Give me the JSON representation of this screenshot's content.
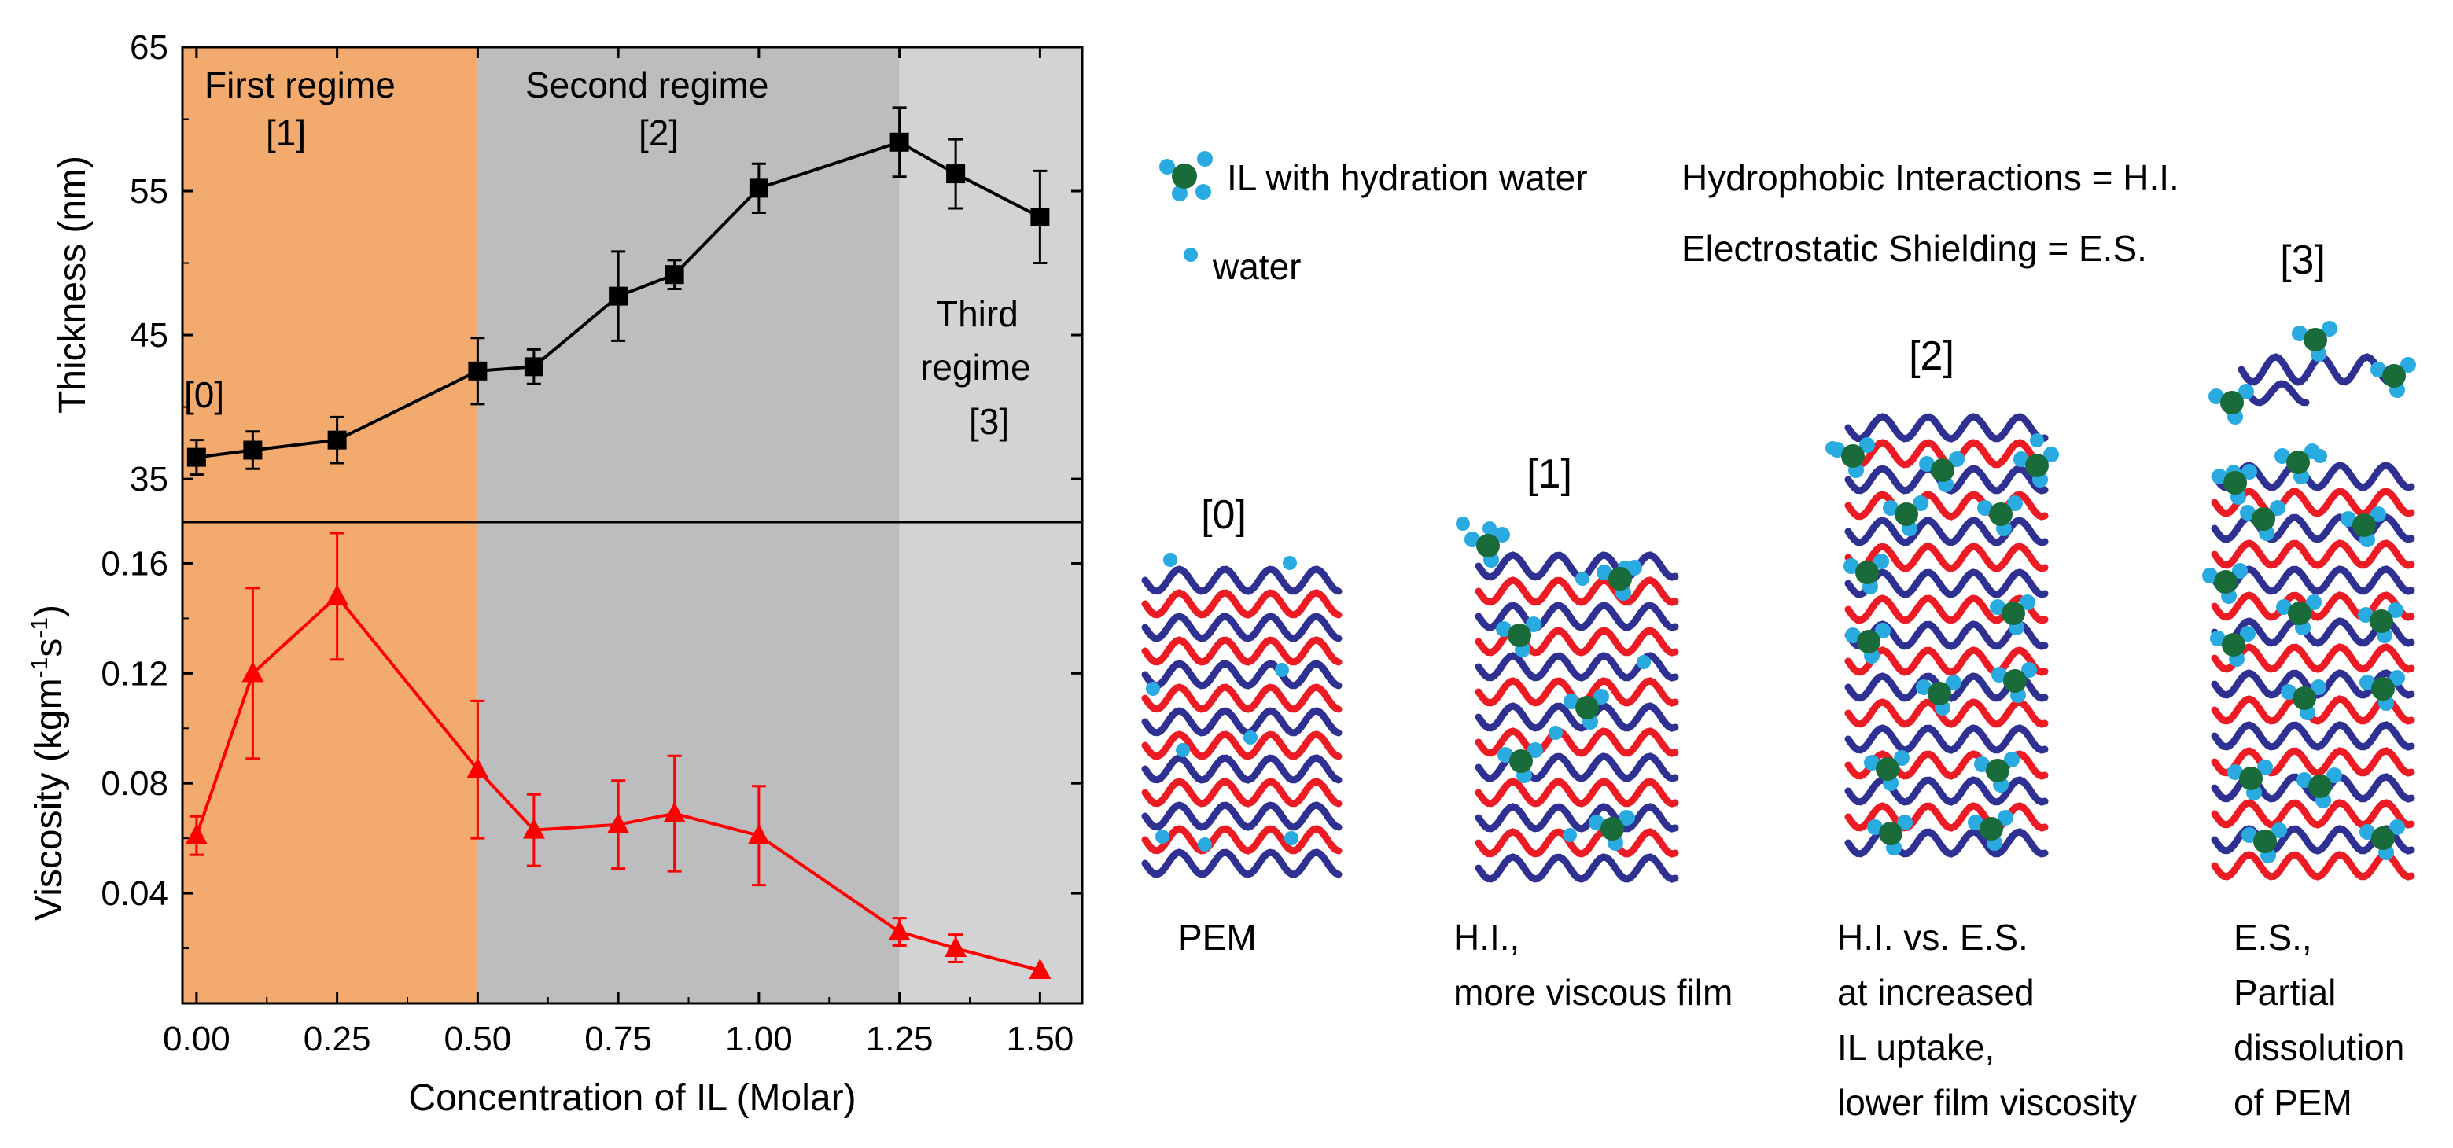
{
  "chart_data": [
    {
      "type": "line",
      "panel": "top",
      "ylabel": "Thickness (nm)",
      "ylim": [
        32,
        65
      ],
      "yticks": [
        35,
        45,
        55,
        65
      ],
      "series": [
        {
          "name": "Thickness",
          "color": "#000000",
          "marker": "square",
          "x": [
            0,
            0.1,
            0.25,
            0.5,
            0.6,
            0.75,
            0.85,
            1.0,
            1.25,
            1.35,
            1.5
          ],
          "values": [
            36.5,
            37.0,
            37.7,
            42.5,
            42.8,
            47.7,
            49.2,
            55.2,
            58.4,
            56.2,
            53.2
          ],
          "errors": [
            1.2,
            1.3,
            1.6,
            2.3,
            1.2,
            3.1,
            1.0,
            1.7,
            2.4,
            2.4,
            3.2
          ]
        }
      ],
      "annotations": [
        {
          "text": "First regime",
          "id": "r1a"
        },
        {
          "text": "[1]",
          "id": "r1b"
        },
        {
          "text": "Second regime",
          "id": "r2a"
        },
        {
          "text": "[2]",
          "id": "r2b"
        },
        {
          "text": "Third",
          "id": "r3a"
        },
        {
          "text": "regime",
          "id": "r3b"
        },
        {
          "text": "[3]",
          "id": "r3c"
        },
        {
          "text": "[0]",
          "id": "r0"
        }
      ]
    },
    {
      "type": "line",
      "panel": "bottom",
      "ylabel": "Viscosity (kgm",
      "ylabel_sup1": "-1",
      "ylabel_mid": "s",
      "ylabel_sup2": "-1",
      "ylabel_end": ")",
      "ylim": [
        0.0,
        0.175
      ],
      "yticks": [
        "0.04",
        "0.08",
        "0.12",
        "0.16"
      ],
      "series": [
        {
          "name": "Viscosity",
          "color": "#ff0000",
          "marker": "triangle",
          "x": [
            0,
            0.1,
            0.25,
            0.5,
            0.6,
            0.75,
            0.85,
            1.0,
            1.25,
            1.35,
            1.5
          ],
          "values": [
            0.061,
            0.12,
            0.148,
            0.085,
            0.063,
            0.065,
            0.069,
            0.061,
            0.026,
            0.02,
            0.012
          ],
          "errors": [
            0.007,
            0.031,
            0.023,
            0.025,
            0.013,
            0.016,
            0.021,
            0.018,
            0.005,
            0.005,
            0.0
          ]
        }
      ]
    }
  ],
  "xaxis": {
    "label": "Concentration of IL (Molar)",
    "xlim": [
      -0.025,
      1.575
    ],
    "ticks": [
      "0.00",
      "0.25",
      "0.50",
      "0.75",
      "1.00",
      "1.25",
      "1.50"
    ],
    "tick_values": [
      0,
      0.25,
      0.5,
      0.75,
      1.0,
      1.25,
      1.5
    ]
  },
  "regimes": [
    {
      "from": -0.025,
      "to": 0.5,
      "color": "#f2aa6e"
    },
    {
      "from": 0.5,
      "to": 1.25,
      "color": "#bdbdbf"
    },
    {
      "from": 1.25,
      "to": 1.575,
      "color": "#d3d3d5"
    }
  ],
  "legend": {
    "il_label": "IL with hydration water",
    "water_label": "water",
    "hi_def": "Hydrophobic Interactions = H.I.",
    "es_def": "Electrostatic Shielding = E.S."
  },
  "schematics": [
    {
      "label": "[0]",
      "caption": [
        "PEM"
      ]
    },
    {
      "label": "[1]",
      "caption": [
        "H.I.,",
        "more viscous film"
      ]
    },
    {
      "label": "[2]",
      "caption": [
        "H.I. vs. E.S.",
        "at increased",
        "IL uptake,",
        "lower film viscosity"
      ]
    },
    {
      "label": "[3]",
      "caption": [
        "E.S.,",
        "Partial",
        "dissolution",
        "of PEM"
      ]
    }
  ],
  "colors": {
    "blue_chain": "#2e3192",
    "red_chain": "#ed1c24",
    "water": "#29abe2",
    "il": "#1a6b3a"
  }
}
